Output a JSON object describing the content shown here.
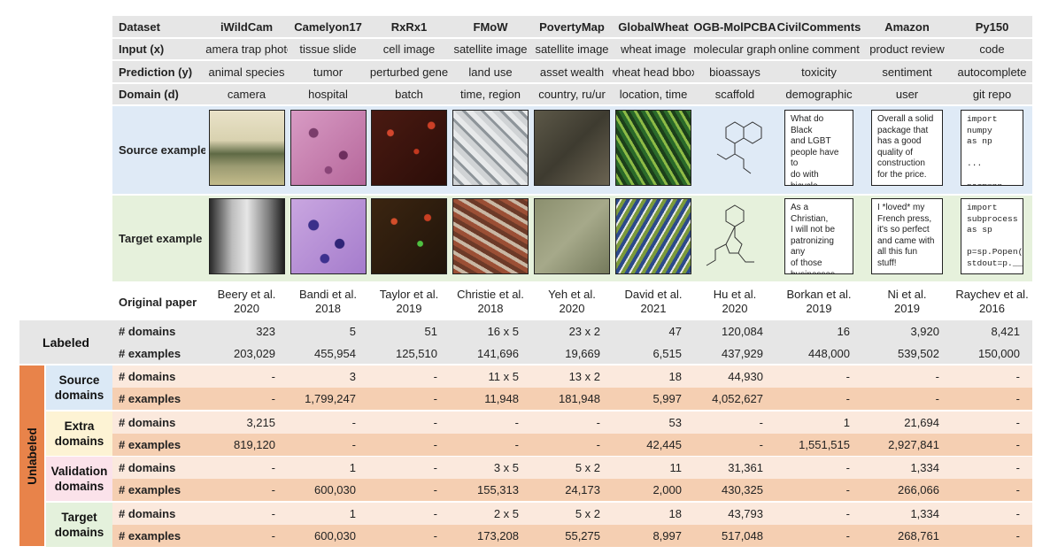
{
  "columns": [
    "iWildCam",
    "Camelyon17",
    "RxRx1",
    "FMoW",
    "PovertyMap",
    "GlobalWheat",
    "OGB-MolPCBA",
    "CivilComments",
    "Amazon",
    "Py150"
  ],
  "header_label": "Dataset",
  "meta_rows": [
    {
      "label": "Input (x)",
      "values": [
        "camera trap photo",
        "tissue slide",
        "cell image",
        "satellite image",
        "satellite image",
        "wheat image",
        "molecular graph",
        "online comment",
        "product review",
        "code"
      ]
    },
    {
      "label": "Prediction (y)",
      "values": [
        "animal species",
        "tumor",
        "perturbed gene",
        "land use",
        "asset wealth",
        "wheat head bbox",
        "bioassays",
        "toxicity",
        "sentiment",
        "autocomplete"
      ]
    },
    {
      "label": "Domain (d)",
      "values": [
        "camera",
        "hospital",
        "batch",
        "time, region",
        "country, ru/ur",
        "location, time",
        "scaffold",
        "demographic",
        "user",
        "git repo"
      ]
    }
  ],
  "source_label": "Source example",
  "target_label": "Target example",
  "source_texts": {
    "civil": "What do Black\nand LGBT\npeople have to\ndo with bicycle\nlicensing?",
    "amazon": "Overall a solid\npackage that\nhas a good\nquality of\nconstruction\nfor the price.",
    "py150": "import numpy\nas np\n\n...\n\nnorm=np.___"
  },
  "target_texts": {
    "civil": "As a Christian,\nI will not be\npatronizing any\nof those\nbusinesses.",
    "amazon": "I *loved* my\nFrench press,\nit's so perfect\nand came with\nall this fun\nstuff!",
    "py150": "import\nsubprocess\nas sp\n\np=sp.Popen()\nstdout=p.___"
  },
  "paper_label": "Original paper",
  "papers": [
    [
      "Beery et al.",
      "2020"
    ],
    [
      "Bandi et al.",
      "2018"
    ],
    [
      "Taylor et al.",
      "2019"
    ],
    [
      "Christie et al.",
      "2018"
    ],
    [
      "Yeh et al.",
      "2020"
    ],
    [
      "David et al.",
      "2021"
    ],
    [
      "Hu et al.",
      "2020"
    ],
    [
      "Borkan et al.",
      "2019"
    ],
    [
      "Ni et al.",
      "2019"
    ],
    [
      "Raychev et al.",
      "2016"
    ]
  ],
  "labeled_group": "Labeled",
  "unlabeled_group": "Unlabeled",
  "row_domains": "# domains",
  "row_examples": "# examples",
  "labeled": {
    "domains": [
      "323",
      "5",
      "51",
      "16 x 5",
      "23 x 2",
      "47",
      "120,084",
      "16",
      "3,920",
      "8,421"
    ],
    "examples": [
      "203,029",
      "455,954",
      "125,510",
      "141,696",
      "19,669",
      "6,515",
      "437,929",
      "448,000",
      "539,502",
      "150,000"
    ]
  },
  "unlabeled": [
    {
      "name": [
        "Source",
        "domains"
      ],
      "bg": "#dbe9f6",
      "domains": [
        "-",
        "3",
        "-",
        "11 x 5",
        "13 x 2",
        "18",
        "44,930",
        "-",
        "-",
        "-"
      ],
      "examples": [
        "-",
        "1,799,247",
        "-",
        "11,948",
        "181,948",
        "5,997",
        "4,052,627",
        "-",
        "-",
        "-"
      ]
    },
    {
      "name": [
        "Extra",
        "domains"
      ],
      "bg": "#fdf3d4",
      "domains": [
        "3,215",
        "-",
        "-",
        "-",
        "-",
        "53",
        "-",
        "1",
        "21,694",
        "-"
      ],
      "examples": [
        "819,120",
        "-",
        "-",
        "-",
        "-",
        "42,445",
        "-",
        "1,551,515",
        "2,927,841",
        "-"
      ]
    },
    {
      "name": [
        "Validation",
        "domains"
      ],
      "bg": "#fbe2ea",
      "domains": [
        "-",
        "1",
        "-",
        "3 x 5",
        "5 x 2",
        "11",
        "31,361",
        "-",
        "1,334",
        "-"
      ],
      "examples": [
        "-",
        "600,030",
        "-",
        "155,313",
        "24,173",
        "2,000",
        "430,325",
        "-",
        "266,066",
        "-"
      ]
    },
    {
      "name": [
        "Target",
        "domains"
      ],
      "bg": "#e4f1dc",
      "domains": [
        "-",
        "1",
        "-",
        "2 x 5",
        "5 x 2",
        "18",
        "43,793",
        "-",
        "1,334",
        "-"
      ],
      "examples": [
        "-",
        "600,030",
        "-",
        "173,208",
        "55,275",
        "8,997",
        "517,048",
        "-",
        "268,761",
        "-"
      ]
    }
  ],
  "colors": {
    "header": "#e6e6e6",
    "source_band": "#dfeaf6",
    "target_band": "#e6f1dc",
    "labeled": "#e6e6e6",
    "unl_a": "#fbe9dd",
    "unl_b": "#f5cfb2",
    "unlabeled_side": "#e8834a"
  }
}
